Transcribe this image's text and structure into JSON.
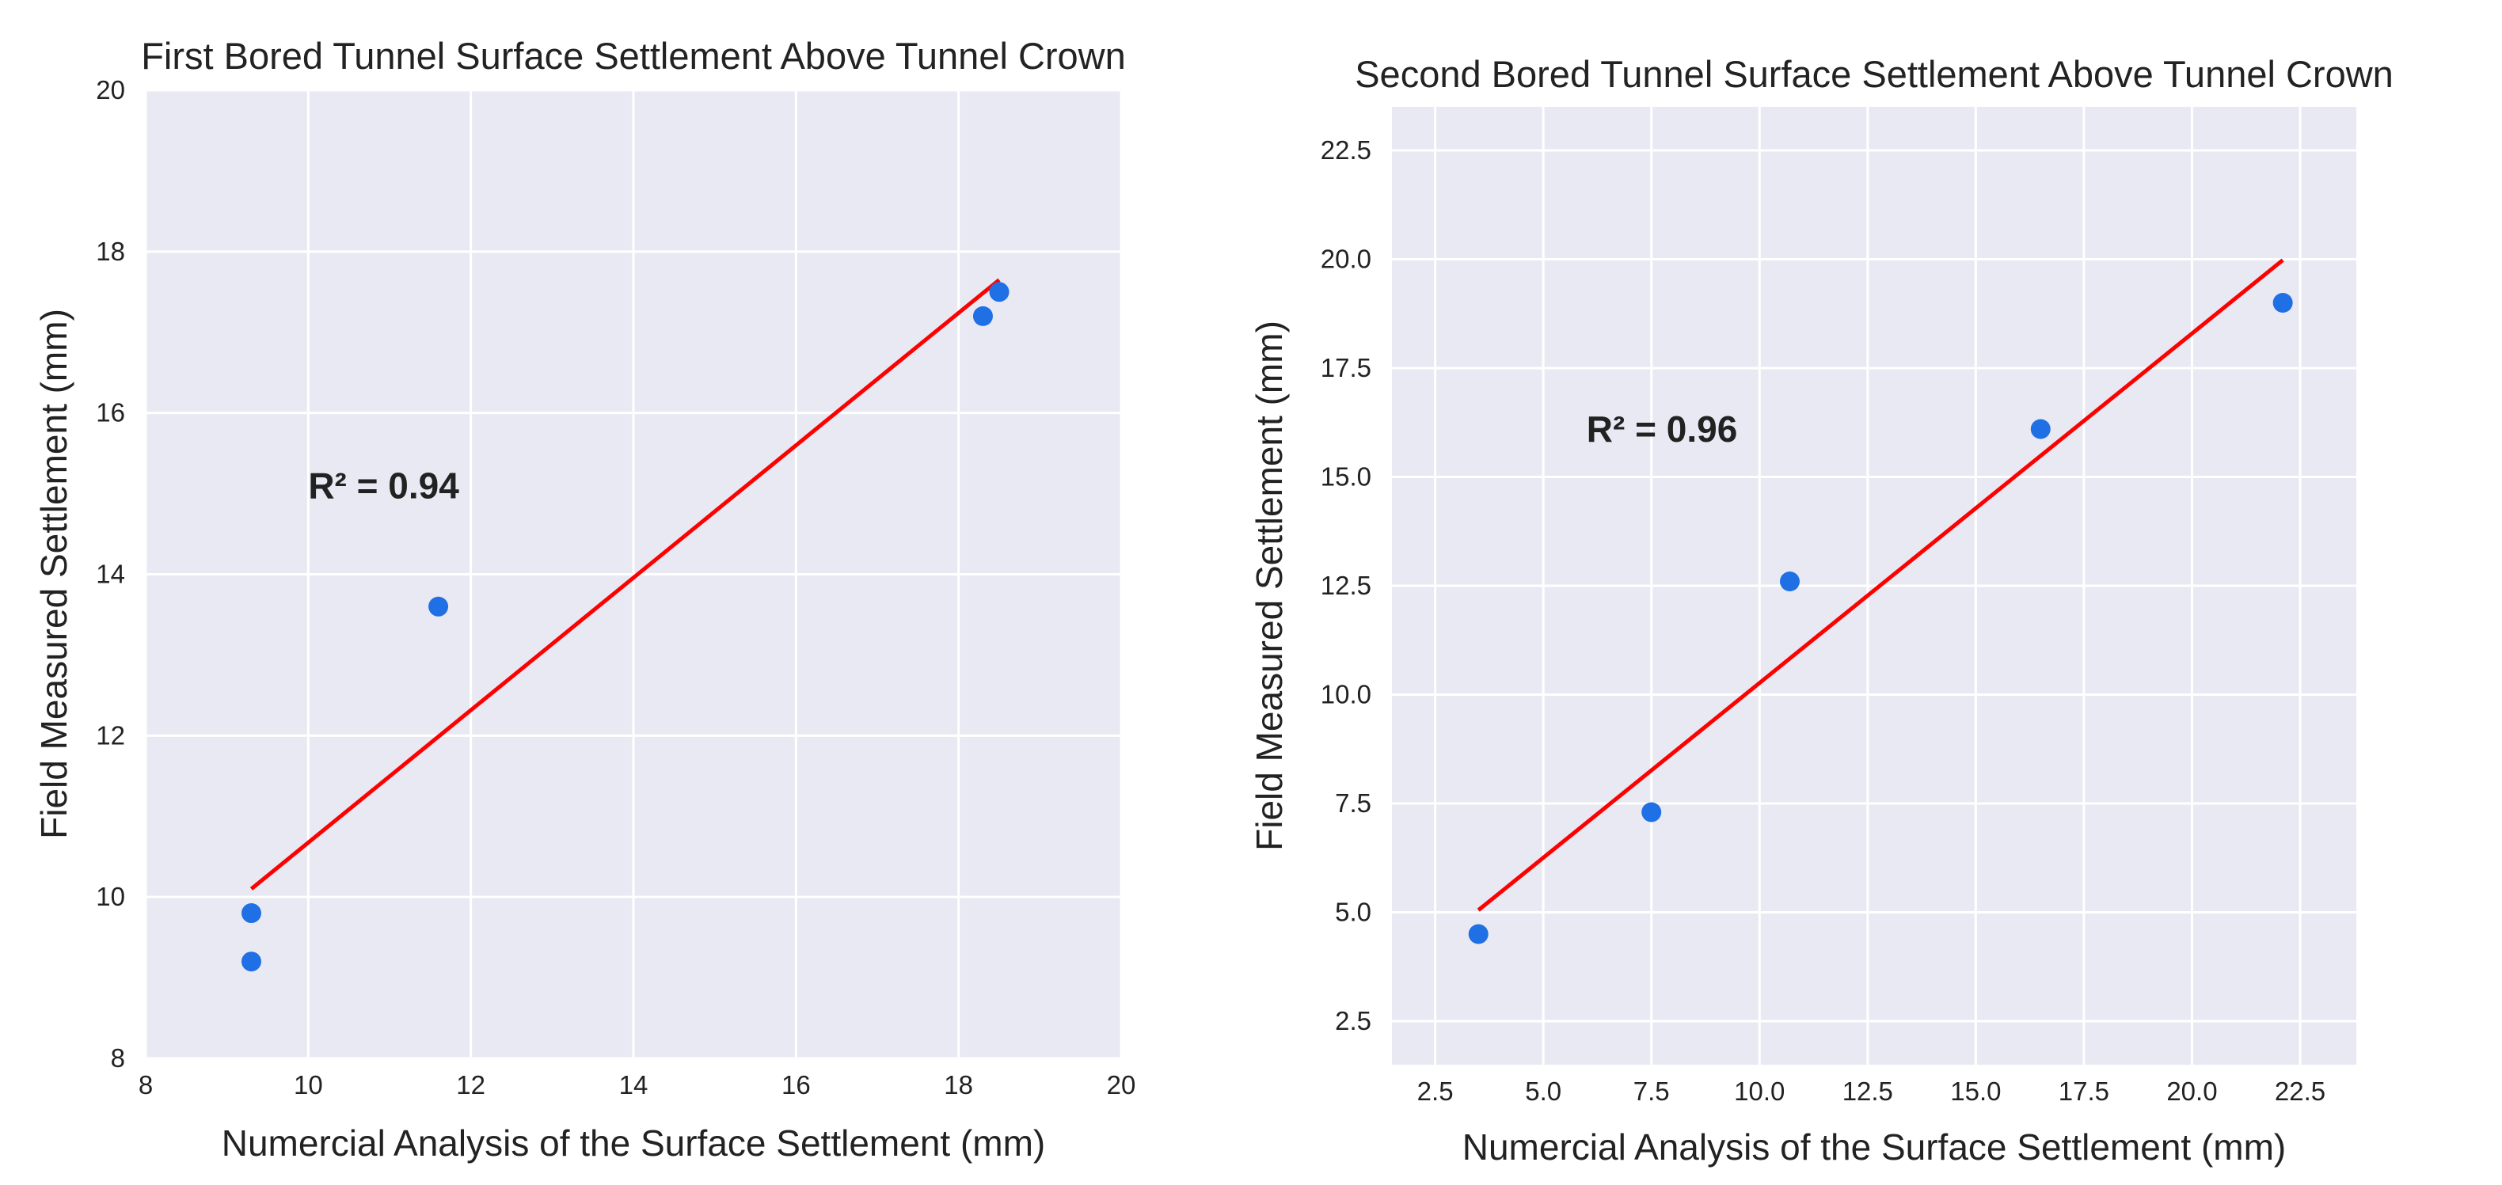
{
  "chart_data": [
    {
      "type": "scatter",
      "title": "First Bored Tunnel Surface Settlement Above Tunnel Crown",
      "xlabel": "Numercial Analysis of the Surface Settlement (mm)",
      "ylabel": "Field Measured Settlement (mm)",
      "xlim": [
        8,
        20
      ],
      "ylim": [
        8,
        20
      ],
      "xticks": [
        8,
        10,
        12,
        14,
        16,
        18,
        20
      ],
      "yticks": [
        8,
        10,
        12,
        14,
        16,
        18,
        20
      ],
      "tick_decimals": 0,
      "grid": true,
      "points": [
        {
          "x": 9.3,
          "y": 9.8
        },
        {
          "x": 9.3,
          "y": 9.2
        },
        {
          "x": 11.6,
          "y": 13.6
        },
        {
          "x": 18.3,
          "y": 17.2
        },
        {
          "x": 18.5,
          "y": 17.5
        }
      ],
      "fit_line": {
        "x": [
          9.3,
          18.5
        ],
        "y": [
          10.1,
          17.65
        ]
      },
      "annotation": {
        "text": "R² = 0.94",
        "x": 10.0,
        "y": 15.1
      },
      "colors": {
        "point": "#1f6fe5",
        "line": "#ff0000",
        "background": "#e8e9f2",
        "grid": "#ffffff"
      }
    },
    {
      "type": "scatter",
      "title": "Second Bored Tunnel Surface Settlement Above Tunnel Crown",
      "xlabel": "Numercial Analysis of the Surface Settlement (mm)",
      "ylabel": "Field Measured Settlement (mm)",
      "xlim": [
        1.5,
        23.8
      ],
      "ylim": [
        1.5,
        23.5
      ],
      "xticks": [
        2.5,
        5.0,
        7.5,
        10.0,
        12.5,
        15.0,
        17.5,
        20.0,
        22.5
      ],
      "yticks": [
        2.5,
        5.0,
        7.5,
        10.0,
        12.5,
        15.0,
        17.5,
        20.0,
        22.5
      ],
      "tick_decimals": 1,
      "grid": true,
      "points": [
        {
          "x": 3.5,
          "y": 4.5
        },
        {
          "x": 7.5,
          "y": 7.3
        },
        {
          "x": 10.7,
          "y": 12.6
        },
        {
          "x": 16.5,
          "y": 16.1
        },
        {
          "x": 22.1,
          "y": 19.0
        }
      ],
      "fit_line": {
        "x": [
          3.5,
          22.1
        ],
        "y": [
          5.05,
          19.98
        ]
      },
      "annotation": {
        "text": "R² = 0.96",
        "x": 6.0,
        "y": 16.1
      },
      "colors": {
        "point": "#1f6fe5",
        "line": "#ff0000",
        "background": "#e8e9f2",
        "grid": "#ffffff"
      }
    }
  ]
}
